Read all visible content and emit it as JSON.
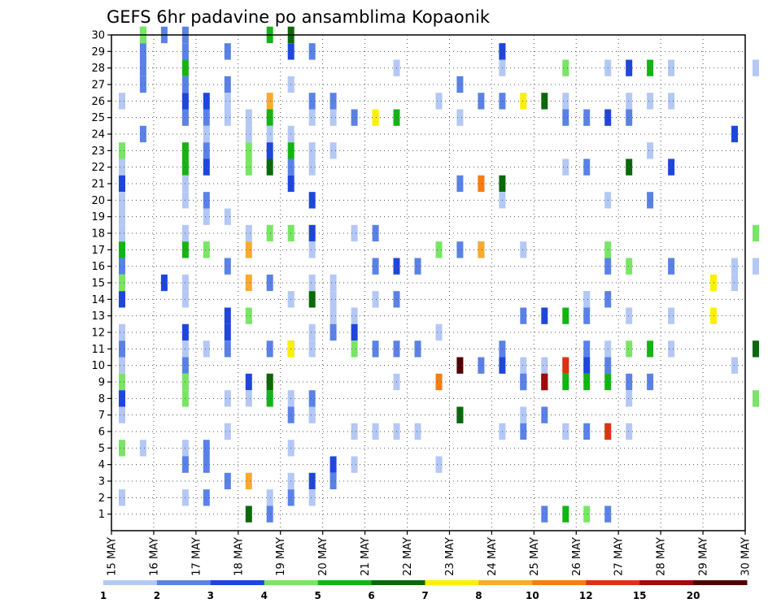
{
  "chart_data": {
    "type": "heatmap",
    "title": "GEFS 6hr padavine po ansamblima Kopaonik",
    "xlabel": "",
    "ylabel": "",
    "x_tick_labels": [
      "15 MAY",
      "16 MAY",
      "17 MAY",
      "18 MAY",
      "19 MAY",
      "20 MAY",
      "21 MAY",
      "22 MAY",
      "23 MAY",
      "24 MAY",
      "25 MAY",
      "26 MAY",
      "27 MAY",
      "28 MAY",
      "29 MAY",
      "30 MAY"
    ],
    "y_tick_labels": [
      "1",
      "2",
      "3",
      "4",
      "5",
      "6",
      "7",
      "8",
      "9",
      "10",
      "11",
      "12",
      "13",
      "14",
      "15",
      "16",
      "17",
      "18",
      "19",
      "20",
      "21",
      "22",
      "23",
      "24",
      "25",
      "26",
      "27",
      "28",
      "29",
      "30"
    ],
    "xlim": [
      0,
      60
    ],
    "ylim": [
      0,
      30
    ],
    "grid": true,
    "legend": {
      "placement": "bottom",
      "labels": [
        "1",
        "2",
        "3",
        "4",
        "5",
        "6",
        "7",
        "8",
        "10",
        "12",
        "15",
        "20"
      ],
      "colors": [
        "#b4c8f5",
        "#5a82e6",
        "#1e46dc",
        "#78e664",
        "#14b414",
        "#0a690a",
        "#faf000",
        "#faaa2d",
        "#f57d14",
        "#dc3214",
        "#a00a0a",
        "#500000"
      ]
    },
    "cells": [
      [
        1,
        30,
        4
      ],
      [
        1,
        30,
        3
      ],
      [
        2,
        30,
        1
      ],
      [
        3,
        30,
        1
      ],
      [
        7,
        30,
        4
      ],
      [
        8,
        30,
        5
      ],
      [
        1,
        29,
        1
      ],
      [
        3,
        29,
        1
      ],
      [
        5,
        29,
        1
      ],
      [
        8,
        29,
        2
      ],
      [
        9,
        29,
        1
      ],
      [
        18,
        29,
        1
      ],
      [
        18,
        29,
        2
      ],
      [
        1,
        28,
        1
      ],
      [
        3,
        28,
        4
      ],
      [
        13,
        28,
        0
      ],
      [
        18,
        28,
        0
      ],
      [
        21,
        28,
        3
      ],
      [
        23,
        28,
        0
      ],
      [
        24,
        28,
        2
      ],
      [
        25,
        28,
        4
      ],
      [
        26,
        28,
        0
      ],
      [
        30,
        28,
        0
      ],
      [
        1,
        27,
        1
      ],
      [
        3,
        27,
        1
      ],
      [
        5,
        27,
        1
      ],
      [
        8,
        27,
        0
      ],
      [
        16,
        27,
        1
      ],
      [
        0,
        26,
        0
      ],
      [
        3,
        26,
        2
      ],
      [
        4,
        26,
        2
      ],
      [
        5,
        26,
        0
      ],
      [
        7,
        26,
        7
      ],
      [
        9,
        26,
        1
      ],
      [
        10,
        26,
        1
      ],
      [
        15,
        26,
        0
      ],
      [
        17,
        26,
        1
      ],
      [
        18,
        26,
        1
      ],
      [
        19,
        26,
        6
      ],
      [
        20,
        26,
        5
      ],
      [
        21,
        26,
        0
      ],
      [
        24,
        26,
        0
      ],
      [
        25,
        26,
        0
      ],
      [
        26,
        26,
        0
      ],
      [
        3,
        25,
        1
      ],
      [
        4,
        25,
        1
      ],
      [
        5,
        25,
        0
      ],
      [
        6,
        25,
        0
      ],
      [
        7,
        25,
        4
      ],
      [
        9,
        25,
        0
      ],
      [
        10,
        25,
        0
      ],
      [
        11,
        25,
        1
      ],
      [
        12,
        25,
        6
      ],
      [
        13,
        25,
        4
      ],
      [
        16,
        25,
        0
      ],
      [
        21,
        25,
        1
      ],
      [
        22,
        25,
        1
      ],
      [
        23,
        25,
        2
      ],
      [
        24,
        25,
        1
      ],
      [
        1,
        24,
        1
      ],
      [
        4,
        24,
        0
      ],
      [
        6,
        24,
        0
      ],
      [
        7,
        24,
        0
      ],
      [
        8,
        24,
        0
      ],
      [
        29,
        24,
        2
      ],
      [
        0,
        23,
        3
      ],
      [
        3,
        23,
        4
      ],
      [
        4,
        23,
        1
      ],
      [
        6,
        23,
        3
      ],
      [
        7,
        23,
        2
      ],
      [
        8,
        23,
        4
      ],
      [
        9,
        23,
        0
      ],
      [
        10,
        23,
        0
      ],
      [
        25,
        23,
        0
      ],
      [
        0,
        22,
        0
      ],
      [
        3,
        22,
        4
      ],
      [
        4,
        22,
        2
      ],
      [
        6,
        22,
        3
      ],
      [
        7,
        22,
        5
      ],
      [
        8,
        22,
        1
      ],
      [
        9,
        22,
        0
      ],
      [
        21,
        22,
        0
      ],
      [
        22,
        22,
        1
      ],
      [
        24,
        22,
        5
      ],
      [
        26,
        22,
        2
      ],
      [
        0,
        21,
        2
      ],
      [
        3,
        21,
        0
      ],
      [
        8,
        21,
        2
      ],
      [
        16,
        21,
        1
      ],
      [
        17,
        21,
        0
      ],
      [
        17,
        21,
        8
      ],
      [
        18,
        21,
        5
      ],
      [
        0,
        20,
        0
      ],
      [
        3,
        20,
        0
      ],
      [
        4,
        20,
        1
      ],
      [
        9,
        20,
        2
      ],
      [
        18,
        20,
        0
      ],
      [
        23,
        20,
        0
      ],
      [
        25,
        20,
        1
      ],
      [
        0,
        19,
        0
      ],
      [
        4,
        19,
        0
      ],
      [
        5,
        19,
        0
      ],
      [
        0,
        18,
        0
      ],
      [
        3,
        18,
        0
      ],
      [
        6,
        18,
        0
      ],
      [
        7,
        18,
        3
      ],
      [
        8,
        18,
        3
      ],
      [
        9,
        18,
        7
      ],
      [
        9,
        18,
        2
      ],
      [
        11,
        18,
        0
      ],
      [
        12,
        18,
        1
      ],
      [
        30,
        18,
        3
      ],
      [
        0,
        17,
        4
      ],
      [
        3,
        17,
        4
      ],
      [
        4,
        17,
        3
      ],
      [
        6,
        17,
        7
      ],
      [
        9,
        17,
        0
      ],
      [
        15,
        17,
        3
      ],
      [
        16,
        17,
        1
      ],
      [
        17,
        17,
        1
      ],
      [
        17,
        17,
        7
      ],
      [
        19,
        17,
        0
      ],
      [
        23,
        17,
        3
      ],
      [
        0,
        16,
        1
      ],
      [
        5,
        16,
        1
      ],
      [
        12,
        16,
        1
      ],
      [
        13,
        16,
        2
      ],
      [
        14,
        16,
        1
      ],
      [
        23,
        16,
        1
      ],
      [
        24,
        16,
        3
      ],
      [
        26,
        16,
        1
      ],
      [
        29,
        16,
        0
      ],
      [
        30,
        16,
        0
      ],
      [
        0,
        15,
        3
      ],
      [
        2,
        15,
        2
      ],
      [
        3,
        15,
        0
      ],
      [
        6,
        15,
        7
      ],
      [
        7,
        15,
        1
      ],
      [
        9,
        15,
        0
      ],
      [
        10,
        15,
        0
      ],
      [
        28,
        15,
        6
      ],
      [
        29,
        15,
        0
      ],
      [
        0,
        14,
        2
      ],
      [
        3,
        14,
        0
      ],
      [
        8,
        14,
        0
      ],
      [
        9,
        14,
        5
      ],
      [
        10,
        14,
        0
      ],
      [
        12,
        14,
        0
      ],
      [
        13,
        14,
        1
      ],
      [
        22,
        14,
        0
      ],
      [
        22,
        14,
        0
      ],
      [
        23,
        14,
        1
      ],
      [
        5,
        13,
        2
      ],
      [
        6,
        13,
        3
      ],
      [
        10,
        13,
        0
      ],
      [
        11,
        13,
        0
      ],
      [
        19,
        13,
        1
      ],
      [
        20,
        13,
        2
      ],
      [
        21,
        13,
        4
      ],
      [
        22,
        13,
        1
      ],
      [
        24,
        13,
        0
      ],
      [
        26,
        13,
        0
      ],
      [
        28,
        13,
        6
      ],
      [
        0,
        12,
        0
      ],
      [
        3,
        12,
        2
      ],
      [
        5,
        12,
        2
      ],
      [
        9,
        12,
        0
      ],
      [
        10,
        12,
        1
      ],
      [
        11,
        12,
        2
      ],
      [
        15,
        12,
        0
      ],
      [
        0,
        11,
        1
      ],
      [
        3,
        11,
        0
      ],
      [
        4,
        11,
        0
      ],
      [
        5,
        11,
        1
      ],
      [
        7,
        11,
        1
      ],
      [
        8,
        11,
        1
      ],
      [
        8,
        11,
        6
      ],
      [
        9,
        11,
        0
      ],
      [
        11,
        11,
        3
      ],
      [
        12,
        11,
        1
      ],
      [
        13,
        11,
        1
      ],
      [
        14,
        11,
        1
      ],
      [
        18,
        11,
        1
      ],
      [
        22,
        11,
        1
      ],
      [
        23,
        11,
        0
      ],
      [
        24,
        11,
        3
      ],
      [
        25,
        11,
        4
      ],
      [
        26,
        11,
        0
      ],
      [
        30,
        11,
        0
      ],
      [
        30,
        11,
        5
      ],
      [
        0,
        10,
        0
      ],
      [
        3,
        10,
        1
      ],
      [
        16,
        10,
        11
      ],
      [
        17,
        10,
        1
      ],
      [
        18,
        10,
        2
      ],
      [
        19,
        10,
        0
      ],
      [
        20,
        10,
        0
      ],
      [
        21,
        10,
        3
      ],
      [
        21,
        10,
        9
      ],
      [
        22,
        10,
        2
      ],
      [
        23,
        10,
        1
      ],
      [
        29,
        10,
        0
      ],
      [
        0,
        9,
        3
      ],
      [
        3,
        9,
        0
      ],
      [
        3,
        9,
        3
      ],
      [
        6,
        9,
        2
      ],
      [
        7,
        9,
        8
      ],
      [
        7,
        9,
        5
      ],
      [
        13,
        9,
        0
      ],
      [
        15,
        9,
        8
      ],
      [
        19,
        9,
        2
      ],
      [
        19,
        9,
        1
      ],
      [
        20,
        9,
        1
      ],
      [
        20,
        9,
        5
      ],
      [
        20,
        9,
        10
      ],
      [
        21,
        9,
        4
      ],
      [
        22,
        9,
        4
      ],
      [
        23,
        9,
        4
      ],
      [
        24,
        9,
        1
      ],
      [
        25,
        9,
        1
      ],
      [
        0,
        8,
        2
      ],
      [
        3,
        8,
        3
      ],
      [
        5,
        8,
        0
      ],
      [
        6,
        8,
        0
      ],
      [
        7,
        8,
        1
      ],
      [
        7,
        8,
        4
      ],
      [
        8,
        8,
        0
      ],
      [
        9,
        8,
        1
      ],
      [
        24,
        8,
        0
      ],
      [
        30,
        8,
        3
      ],
      [
        0,
        7,
        0
      ],
      [
        8,
        7,
        1
      ],
      [
        9,
        7,
        0
      ],
      [
        9,
        7,
        0
      ],
      [
        16,
        7,
        2
      ],
      [
        16,
        7,
        5
      ],
      [
        19,
        7,
        0
      ],
      [
        20,
        7,
        1
      ],
      [
        5,
        6,
        0
      ],
      [
        11,
        6,
        0
      ],
      [
        12,
        6,
        0
      ],
      [
        13,
        6,
        0
      ],
      [
        14,
        6,
        0
      ],
      [
        18,
        6,
        0
      ],
      [
        19,
        6,
        1
      ],
      [
        21,
        6,
        0
      ],
      [
        22,
        6,
        1
      ],
      [
        23,
        6,
        3
      ],
      [
        23,
        6,
        9
      ],
      [
        24,
        6,
        0
      ],
      [
        0,
        5,
        3
      ],
      [
        1,
        5,
        0
      ],
      [
        3,
        5,
        0
      ],
      [
        4,
        5,
        1
      ],
      [
        8,
        5,
        0
      ],
      [
        3,
        4,
        1
      ],
      [
        4,
        4,
        1
      ],
      [
        10,
        4,
        2
      ],
      [
        11,
        4,
        0
      ],
      [
        15,
        4,
        0
      ],
      [
        5,
        3,
        1
      ],
      [
        6,
        3,
        7
      ],
      [
        8,
        3,
        0
      ],
      [
        9,
        3,
        2
      ],
      [
        10,
        3,
        1
      ],
      [
        0,
        2,
        0
      ],
      [
        3,
        2,
        0
      ],
      [
        4,
        2,
        1
      ],
      [
        7,
        2,
        0
      ],
      [
        8,
        2,
        1
      ],
      [
        9,
        2,
        0
      ],
      [
        6,
        1,
        5
      ],
      [
        7,
        1,
        1
      ],
      [
        20,
        1,
        1
      ],
      [
        21,
        1,
        4
      ],
      [
        22,
        1,
        3
      ],
      [
        23,
        1,
        1
      ]
    ]
  }
}
